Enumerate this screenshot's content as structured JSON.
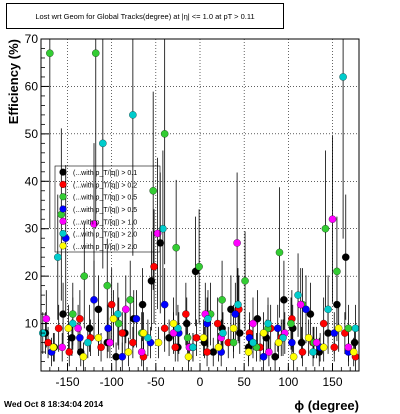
{
  "chart_data": {
    "type": "scatter",
    "title": "Lost wrt Geom for Global Tracks(degree) at |η| <= 1.0 at pT > 0.11",
    "xlabel": "ϕ (degree)",
    "ylabel": "Efficiency (%)",
    "xlim": [
      -180,
      180
    ],
    "ylim": [
      0,
      70
    ],
    "x_ticks": [
      -150,
      -100,
      -50,
      0,
      50,
      100,
      150
    ],
    "y_ticks": [
      10,
      20,
      30,
      40,
      50,
      60,
      70
    ],
    "grid": true,
    "legend_position": "left",
    "series": [
      {
        "name": "(...with p_T/|q|) > 0.1",
        "color": "#000000",
        "x": [
          -175,
          -165,
          -155,
          -145,
          -135,
          -125,
          -115,
          -105,
          -95,
          -85,
          -75,
          -65,
          -55,
          -45,
          -35,
          -25,
          -15,
          -5,
          5,
          15,
          25,
          35,
          45,
          55,
          65,
          75,
          85,
          95,
          105,
          115,
          125,
          135,
          145,
          155,
          165,
          175
        ],
        "y": [
          8,
          5,
          12,
          7,
          4,
          9,
          13,
          6,
          3,
          8,
          11,
          14,
          19,
          27,
          7,
          5,
          10,
          21,
          6,
          4,
          9,
          13,
          8,
          5,
          11,
          7,
          3,
          15,
          9,
          6,
          12,
          4,
          8,
          14,
          24,
          6
        ]
      },
      {
        "name": "(...with p_T/|q|) > 0.2",
        "color": "#ff0000",
        "x": [
          -172,
          -160,
          -148,
          -136,
          -124,
          -112,
          -100,
          -88,
          -76,
          -64,
          -52,
          -40,
          -28,
          -16,
          -4,
          8,
          20,
          32,
          44,
          56,
          68,
          80,
          92,
          104,
          116,
          128,
          140,
          152,
          164,
          176
        ],
        "y": [
          6,
          9,
          4,
          11,
          7,
          5,
          14,
          8,
          6,
          3,
          22,
          9,
          5,
          12,
          7,
          4,
          10,
          6,
          13,
          8,
          5,
          9,
          7,
          11,
          4,
          6,
          10,
          5,
          8,
          3
        ]
      },
      {
        "name": "(...with p_T/|q|) > 0.5",
        "color": "#33cc33",
        "x": [
          -170,
          -157,
          -144,
          -131,
          -118,
          -105,
          -92,
          -79,
          -66,
          -53,
          -40,
          -27,
          -14,
          -1,
          12,
          25,
          38,
          51,
          64,
          77,
          90,
          103,
          116,
          129,
          142,
          155,
          168
        ],
        "y": [
          67,
          33,
          12,
          20,
          67,
          18,
          10,
          15,
          8,
          38,
          50,
          26,
          7,
          22,
          12,
          15,
          6,
          19,
          5,
          9,
          25,
          10,
          14,
          6,
          30,
          21,
          9
        ]
      },
      {
        "name": "(...with p_T/|q|) > 0.5",
        "color": "#0000ff",
        "x": [
          -168,
          -152,
          -136,
          -120,
          -104,
          -88,
          -72,
          -56,
          -40,
          -24,
          -8,
          8,
          24,
          40,
          56,
          72,
          88,
          104,
          120,
          136,
          152,
          168
        ],
        "y": [
          4,
          28,
          7,
          15,
          9,
          3,
          11,
          6,
          14,
          8,
          5,
          10,
          4,
          12,
          7,
          3,
          9,
          6,
          13,
          5,
          8,
          4
        ]
      },
      {
        "name": "(...with p_T/|q|) > 1.0",
        "color": "#ff00ff",
        "x": [
          -174,
          -156,
          -138,
          -120,
          -102,
          -84,
          -66,
          -48,
          -30,
          -12,
          6,
          24,
          42,
          60,
          78,
          96,
          114,
          132,
          150,
          168
        ],
        "y": [
          11,
          5,
          9,
          31,
          6,
          13,
          4,
          29,
          8,
          5,
          12,
          7,
          27,
          10,
          4,
          8,
          14,
          6,
          32,
          5
        ]
      },
      {
        "name": "(...with p_T/|q|) > 2.0",
        "color": "#00cccc",
        "x": [
          -178,
          -161,
          -144,
          -127,
          -110,
          -93,
          -76,
          -59,
          -42,
          -25,
          -8,
          9,
          26,
          43,
          60,
          77,
          94,
          111,
          128,
          145,
          162,
          176
        ],
        "y": [
          8,
          24,
          10,
          6,
          48,
          12,
          54,
          7,
          30,
          9,
          5,
          11,
          8,
          14,
          6,
          10,
          7,
          16,
          4,
          13,
          62,
          9
        ]
      },
      {
        "name": "(...with p_T/|q|) > 2.0",
        "color": "#ffff00",
        "x": [
          -166,
          -149,
          -132,
          -115,
          -98,
          -81,
          -64,
          -47,
          -30,
          -13,
          4,
          21,
          38,
          55,
          72,
          89,
          106,
          123,
          140,
          157,
          174
        ],
        "y": [
          5,
          9,
          3,
          7,
          11,
          4,
          8,
          6,
          10,
          3,
          7,
          5,
          9,
          4,
          8,
          6,
          3,
          7,
          5,
          9,
          4
        ]
      }
    ]
  },
  "footer": {
    "timestamp": "Wed Oct  8 18:34:04 2014"
  }
}
